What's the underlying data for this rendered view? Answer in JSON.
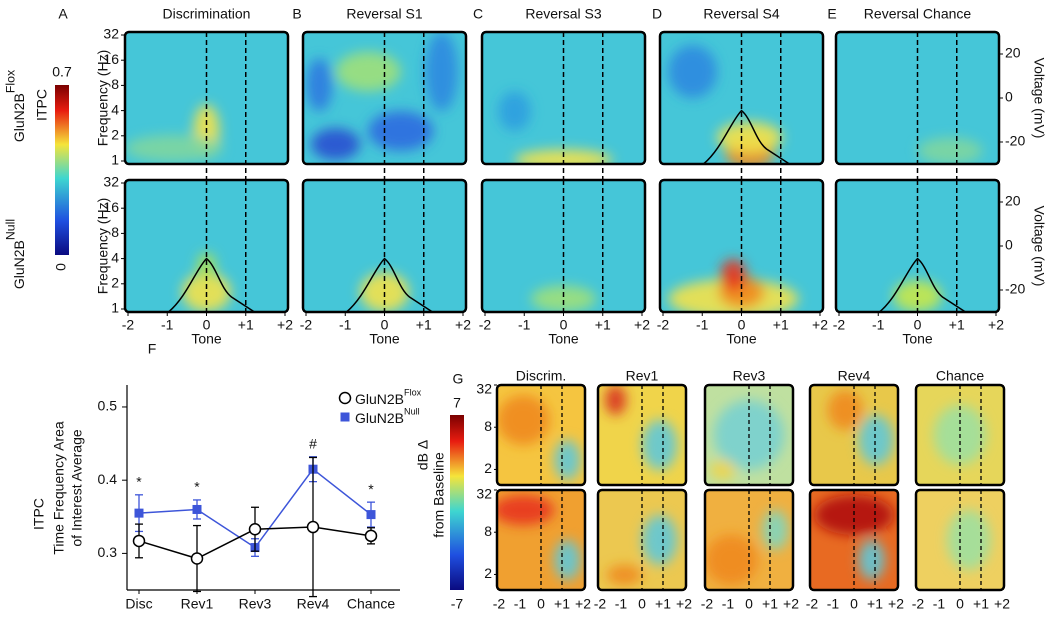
{
  "panel_letters": [
    "A",
    "B",
    "C",
    "D",
    "E",
    "F",
    "G"
  ],
  "tf_panels": {
    "titles": [
      "Discrimination",
      "Reversal S1",
      "Reversal S3",
      "Reversal S4",
      "Reversal Chance"
    ],
    "row_labels": [
      {
        "text": "GluN2B",
        "superscript": "Flox"
      },
      {
        "text": "GluN2B",
        "superscript": "Null"
      }
    ],
    "colorbar": {
      "label": "ITPC",
      "max": 0.7,
      "min": 0
    },
    "y_label": "Frequency (Hz)",
    "ylim": [
      1,
      32
    ],
    "yticks": [
      1,
      2,
      4,
      8,
      16,
      32
    ],
    "log_y": true,
    "y2_label": "Voltage (mV)",
    "y2lim": [
      -30,
      30
    ],
    "y2ticks": [
      -20,
      0,
      20
    ],
    "x_label": "Tone",
    "xlim": [
      -2,
      2
    ],
    "xticks": [
      -2,
      -1,
      0,
      {
        "value": 1,
        "label": "+1"
      },
      {
        "value": 2,
        "label": "+2"
      }
    ]
  },
  "chart_data": {
    "type": "line",
    "y_label_lines": [
      "ITPC",
      "Time Frequency Area",
      "of Interest Average"
    ],
    "categories": [
      "Disc",
      "Rev1",
      "Rev3",
      "Rev4",
      "Chance"
    ],
    "series": [
      {
        "name": "GluN2B",
        "name_superscript": "Flox",
        "color": "#000000",
        "marker": "circle",
        "values": [
          0.317,
          0.293,
          0.333,
          0.336,
          0.324
        ],
        "errors": [
          0.023,
          0.045,
          0.03,
          0.095,
          0.011
        ]
      },
      {
        "name": "GluN2B",
        "name_superscript": "Null",
        "color": "#3d55d9",
        "marker": "square",
        "values": [
          0.355,
          0.36,
          0.308,
          0.415,
          0.353
        ],
        "errors": [
          0.025,
          0.013,
          0.012,
          0.017,
          0.017
        ]
      }
    ],
    "ylim": [
      0.25,
      0.53
    ],
    "yticks": [
      0.3,
      0.4,
      0.5
    ],
    "legend": "upper right",
    "annotations": [
      {
        "text": "*",
        "category": "Disc"
      },
      {
        "text": "*",
        "category": "Rev1"
      },
      {
        "text": "#",
        "category": "Rev4"
      },
      {
        "text": "*",
        "category": "Chance"
      }
    ]
  },
  "g_panels": {
    "titles": [
      "Discrim.",
      "Rev1",
      "Rev3",
      "Rev4",
      "Chance"
    ],
    "colorbar": {
      "label_lines": [
        "dB Δ",
        "from Baseline"
      ],
      "max": 7,
      "min": -7
    },
    "ylim": [
      1.2,
      32
    ],
    "yticks": [
      2,
      8,
      32
    ],
    "log_y": true,
    "xlim": [
      -2,
      2
    ],
    "xticks": [
      -2,
      -1,
      0,
      {
        "value": 1,
        "label": "+1"
      },
      {
        "value": 2,
        "label": "+2"
      }
    ]
  }
}
